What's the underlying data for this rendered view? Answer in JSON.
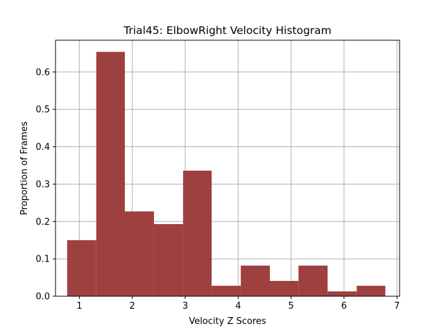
{
  "chart_data": {
    "type": "bar",
    "title": "Trial45: ElbowRight Velocity Histogram",
    "xlabel": "Velocity Z Scores",
    "ylabel": "Proportion of Frames",
    "xlim": [
      0.55,
      7.05
    ],
    "ylim": [
      0,
      0.685
    ],
    "xticks": [
      1,
      2,
      3,
      4,
      5,
      6,
      7
    ],
    "yticks": [
      0.0,
      0.1,
      0.2,
      0.3,
      0.4,
      0.5,
      0.6
    ],
    "grid": true,
    "bar_color": "#9e4040",
    "bins": [
      {
        "x0": 0.77,
        "x1": 1.32,
        "value": 0.15
      },
      {
        "x0": 1.32,
        "x1": 1.86,
        "value": 0.654
      },
      {
        "x0": 1.86,
        "x1": 2.41,
        "value": 0.227
      },
      {
        "x0": 2.41,
        "x1": 2.96,
        "value": 0.193
      },
      {
        "x0": 2.96,
        "x1": 3.5,
        "value": 0.336
      },
      {
        "x0": 3.5,
        "x1": 4.05,
        "value": 0.028
      },
      {
        "x0": 4.05,
        "x1": 4.6,
        "value": 0.082
      },
      {
        "x0": 4.6,
        "x1": 5.14,
        "value": 0.041
      },
      {
        "x0": 5.14,
        "x1": 5.69,
        "value": 0.082
      },
      {
        "x0": 5.69,
        "x1": 6.24,
        "value": 0.013
      },
      {
        "x0": 6.24,
        "x1": 6.78,
        "value": 0.028
      }
    ]
  }
}
